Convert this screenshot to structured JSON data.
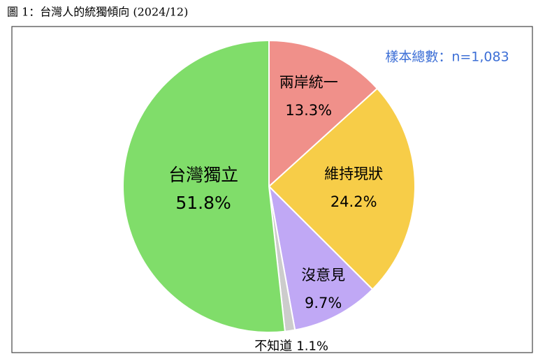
{
  "chart_data": {
    "type": "pie",
    "title": "圖 1：台灣人的統獨傾向 (2024/12)",
    "annotation": "樣本總數：n=1,083",
    "categories": [
      "兩岸統一",
      "維持現狀",
      "沒意見",
      "不知道",
      "台灣獨立"
    ],
    "values": [
      13.3,
      24.2,
      9.7,
      1.1,
      51.8
    ],
    "value_labels": [
      "13.3%",
      "24.2%",
      "9.7%",
      "1.1%",
      "51.8%"
    ],
    "colors": [
      "#f0908a",
      "#f7cd48",
      "#c0a8f5",
      "#cccccc",
      "#80dd6a"
    ]
  }
}
